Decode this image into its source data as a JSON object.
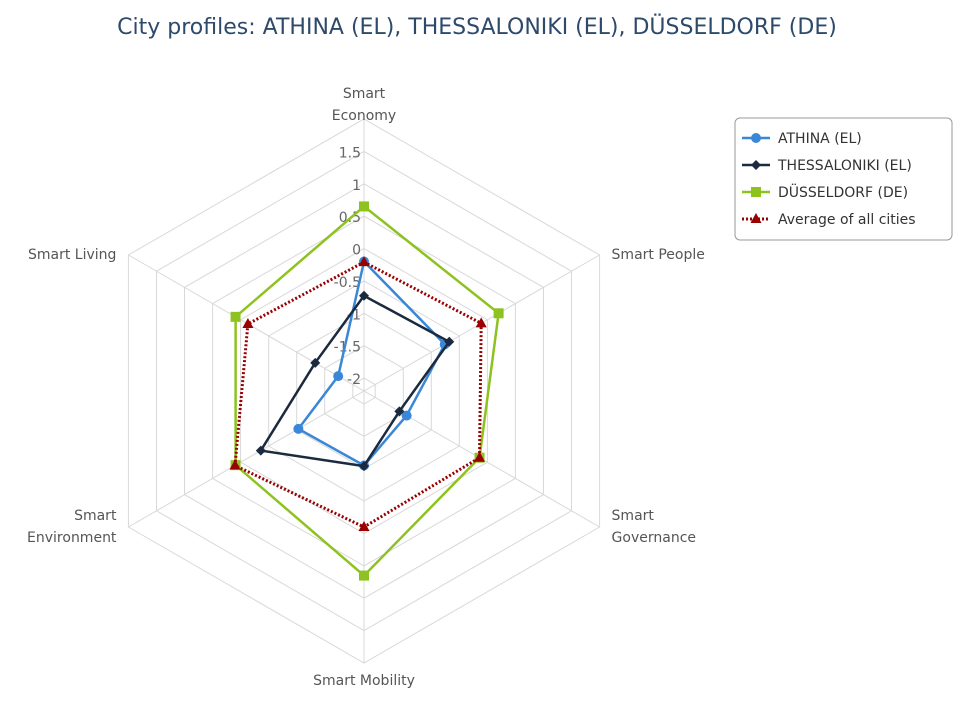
{
  "chart_data": {
    "type": "radar",
    "title": "City profiles: ATHINA (EL), THESSALONIKI (EL), DÜSSELDORF (DE)",
    "categories": [
      "Smart Economy",
      "Smart People",
      "Smart Governance",
      "Smart Mobility",
      "Smart Environment",
      "Smart Living"
    ],
    "series": [
      {
        "name": "ATHINA (EL)",
        "color": "#3a87d8",
        "marker": "circle",
        "dash": "solid",
        "values": [
          -0.2,
          -0.76,
          -1.44,
          -1.05,
          -1.03,
          -1.74
        ]
      },
      {
        "name": "THESSALONIKI (EL)",
        "color": "#1b2a3f",
        "marker": "diamond",
        "dash": "solid",
        "values": [
          -0.73,
          -0.68,
          -1.57,
          -1.04,
          -0.36,
          -1.33
        ]
      },
      {
        "name": "DÜSSELDORF (DE)",
        "color": "#8dc21f",
        "marker": "square",
        "dash": "solid",
        "values": [
          0.65,
          0.2,
          -0.14,
          0.65,
          0.09,
          0.09
        ]
      },
      {
        "name": "Average of all cities",
        "color": "#990000",
        "marker": "triangle",
        "dash": "dotted",
        "values": [
          -0.21,
          -0.11,
          -0.14,
          -0.1,
          0.1,
          -0.13
        ]
      }
    ],
    "ylim": [
      -2.2,
      2
    ],
    "yticks": [
      -2,
      -1.5,
      -1,
      -0.5,
      0,
      0.5,
      1,
      1.5
    ],
    "grid": true,
    "legend": "top-right"
  }
}
